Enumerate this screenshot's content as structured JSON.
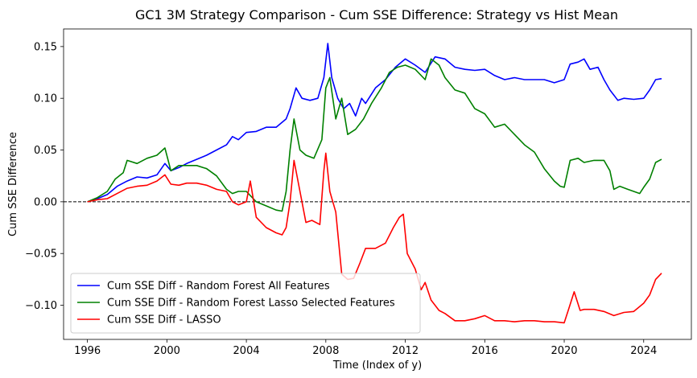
{
  "chart_data": {
    "type": "line",
    "title": "GC1 3M Strategy Comparison - Cum SSE Difference: Strategy vs Hist Mean",
    "xlabel": "Time (Index of y)",
    "ylabel": "Cum SSE Difference",
    "xlim": [
      1994.8,
      2026.4
    ],
    "ylim": [
      -0.133,
      0.167
    ],
    "xticks": [
      1996,
      2000,
      2004,
      2008,
      2012,
      2016,
      2020,
      2024
    ],
    "xtick_labels": [
      "1996",
      "2000",
      "2004",
      "2008",
      "2012",
      "2016",
      "2020",
      "2024"
    ],
    "yticks": [
      -0.1,
      -0.05,
      0.0,
      0.05,
      0.1,
      0.15
    ],
    "ytick_labels": [
      "−0.10",
      "−0.05",
      "0.00",
      "0.05",
      "0.10",
      "0.15"
    ],
    "reference_line": {
      "y": 0.0,
      "style": "dashed",
      "color": "#000000"
    },
    "legend_position": "lower-left",
    "series": [
      {
        "name": "Cum SSE Diff - Random Forest All Features",
        "color": "#0000ff",
        "points": [
          [
            1996.0,
            0.0
          ],
          [
            1996.5,
            0.003
          ],
          [
            1997.0,
            0.007
          ],
          [
            1997.5,
            0.015
          ],
          [
            1998.0,
            0.02
          ],
          [
            1998.5,
            0.024
          ],
          [
            1999.0,
            0.023
          ],
          [
            1999.5,
            0.026
          ],
          [
            1999.9,
            0.037
          ],
          [
            2000.2,
            0.03
          ],
          [
            2000.6,
            0.033
          ],
          [
            2001.0,
            0.037
          ],
          [
            2001.5,
            0.041
          ],
          [
            2002.0,
            0.045
          ],
          [
            2002.5,
            0.05
          ],
          [
            2003.0,
            0.055
          ],
          [
            2003.3,
            0.063
          ],
          [
            2003.6,
            0.06
          ],
          [
            2004.0,
            0.067
          ],
          [
            2004.5,
            0.068
          ],
          [
            2005.0,
            0.072
          ],
          [
            2005.5,
            0.072
          ],
          [
            2006.0,
            0.08
          ],
          [
            2006.2,
            0.09
          ],
          [
            2006.5,
            0.11
          ],
          [
            2006.8,
            0.1
          ],
          [
            2007.2,
            0.098
          ],
          [
            2007.6,
            0.1
          ],
          [
            2007.9,
            0.12
          ],
          [
            2008.1,
            0.153
          ],
          [
            2008.3,
            0.12
          ],
          [
            2008.6,
            0.1
          ],
          [
            2008.9,
            0.09
          ],
          [
            2009.2,
            0.095
          ],
          [
            2009.5,
            0.083
          ],
          [
            2009.8,
            0.1
          ],
          [
            2010.0,
            0.095
          ],
          [
            2010.5,
            0.11
          ],
          [
            2011.0,
            0.118
          ],
          [
            2011.5,
            0.13
          ],
          [
            2012.0,
            0.138
          ],
          [
            2012.5,
            0.132
          ],
          [
            2013.0,
            0.125
          ],
          [
            2013.5,
            0.14
          ],
          [
            2014.0,
            0.138
          ],
          [
            2014.5,
            0.13
          ],
          [
            2015.0,
            0.128
          ],
          [
            2015.5,
            0.127
          ],
          [
            2016.0,
            0.128
          ],
          [
            2016.5,
            0.122
          ],
          [
            2017.0,
            0.118
          ],
          [
            2017.5,
            0.12
          ],
          [
            2018.0,
            0.118
          ],
          [
            2018.5,
            0.118
          ],
          [
            2019.0,
            0.118
          ],
          [
            2019.5,
            0.115
          ],
          [
            2020.0,
            0.118
          ],
          [
            2020.3,
            0.133
          ],
          [
            2020.7,
            0.135
          ],
          [
            2021.0,
            0.138
          ],
          [
            2021.3,
            0.128
          ],
          [
            2021.7,
            0.13
          ],
          [
            2022.0,
            0.118
          ],
          [
            2022.3,
            0.108
          ],
          [
            2022.7,
            0.098
          ],
          [
            2023.0,
            0.1
          ],
          [
            2023.5,
            0.099
          ],
          [
            2024.0,
            0.1
          ],
          [
            2024.3,
            0.108
          ],
          [
            2024.6,
            0.118
          ],
          [
            2024.9,
            0.119
          ]
        ]
      },
      {
        "name": "Cum SSE Diff - Random Forest Lasso Selected Features",
        "color": "#008000",
        "points": [
          [
            1996.0,
            0.0
          ],
          [
            1996.5,
            0.004
          ],
          [
            1997.0,
            0.01
          ],
          [
            1997.4,
            0.022
          ],
          [
            1997.8,
            0.028
          ],
          [
            1998.0,
            0.04
          ],
          [
            1998.5,
            0.037
          ],
          [
            1999.0,
            0.042
          ],
          [
            1999.5,
            0.045
          ],
          [
            1999.9,
            0.052
          ],
          [
            2000.2,
            0.03
          ],
          [
            2000.6,
            0.035
          ],
          [
            2001.0,
            0.035
          ],
          [
            2001.5,
            0.035
          ],
          [
            2002.0,
            0.032
          ],
          [
            2002.5,
            0.025
          ],
          [
            2003.0,
            0.012
          ],
          [
            2003.3,
            0.008
          ],
          [
            2003.6,
            0.01
          ],
          [
            2004.0,
            0.01
          ],
          [
            2004.5,
            0.0
          ],
          [
            2005.0,
            -0.004
          ],
          [
            2005.5,
            -0.008
          ],
          [
            2005.8,
            -0.009
          ],
          [
            2006.0,
            0.01
          ],
          [
            2006.2,
            0.05
          ],
          [
            2006.4,
            0.08
          ],
          [
            2006.7,
            0.05
          ],
          [
            2007.0,
            0.045
          ],
          [
            2007.4,
            0.042
          ],
          [
            2007.8,
            0.06
          ],
          [
            2008.0,
            0.11
          ],
          [
            2008.2,
            0.12
          ],
          [
            2008.5,
            0.08
          ],
          [
            2008.8,
            0.1
          ],
          [
            2009.1,
            0.065
          ],
          [
            2009.5,
            0.07
          ],
          [
            2009.9,
            0.08
          ],
          [
            2010.3,
            0.095
          ],
          [
            2010.8,
            0.11
          ],
          [
            2011.2,
            0.125
          ],
          [
            2011.6,
            0.13
          ],
          [
            2012.0,
            0.132
          ],
          [
            2012.5,
            0.128
          ],
          [
            2013.0,
            0.118
          ],
          [
            2013.3,
            0.138
          ],
          [
            2013.7,
            0.132
          ],
          [
            2014.0,
            0.12
          ],
          [
            2014.5,
            0.108
          ],
          [
            2015.0,
            0.105
          ],
          [
            2015.5,
            0.09
          ],
          [
            2016.0,
            0.085
          ],
          [
            2016.5,
            0.072
          ],
          [
            2017.0,
            0.075
          ],
          [
            2017.5,
            0.065
          ],
          [
            2018.0,
            0.055
          ],
          [
            2018.5,
            0.048
          ],
          [
            2019.0,
            0.032
          ],
          [
            2019.5,
            0.02
          ],
          [
            2019.8,
            0.015
          ],
          [
            2020.0,
            0.014
          ],
          [
            2020.3,
            0.04
          ],
          [
            2020.7,
            0.042
          ],
          [
            2021.0,
            0.038
          ],
          [
            2021.5,
            0.04
          ],
          [
            2022.0,
            0.04
          ],
          [
            2022.3,
            0.03
          ],
          [
            2022.5,
            0.012
          ],
          [
            2022.8,
            0.015
          ],
          [
            2023.2,
            0.012
          ],
          [
            2023.5,
            0.01
          ],
          [
            2023.8,
            0.008
          ],
          [
            2024.0,
            0.014
          ],
          [
            2024.3,
            0.022
          ],
          [
            2024.6,
            0.038
          ],
          [
            2024.9,
            0.041
          ]
        ]
      },
      {
        "name": "Cum SSE Diff - LASSO",
        "color": "#ff0000",
        "points": [
          [
            1996.0,
            0.0
          ],
          [
            1996.5,
            0.002
          ],
          [
            1997.0,
            0.003
          ],
          [
            1997.5,
            0.008
          ],
          [
            1998.0,
            0.013
          ],
          [
            1998.5,
            0.015
          ],
          [
            1999.0,
            0.016
          ],
          [
            1999.5,
            0.02
          ],
          [
            1999.9,
            0.026
          ],
          [
            2000.2,
            0.017
          ],
          [
            2000.6,
            0.016
          ],
          [
            2001.0,
            0.018
          ],
          [
            2001.5,
            0.018
          ],
          [
            2002.0,
            0.016
          ],
          [
            2002.5,
            0.012
          ],
          [
            2003.0,
            0.01
          ],
          [
            2003.3,
            0.0
          ],
          [
            2003.6,
            -0.003
          ],
          [
            2004.0,
            0.0
          ],
          [
            2004.2,
            0.02
          ],
          [
            2004.5,
            -0.015
          ],
          [
            2005.0,
            -0.025
          ],
          [
            2005.5,
            -0.03
          ],
          [
            2005.8,
            -0.032
          ],
          [
            2006.0,
            -0.025
          ],
          [
            2006.2,
            0.0
          ],
          [
            2006.4,
            0.04
          ],
          [
            2006.7,
            0.01
          ],
          [
            2007.0,
            -0.02
          ],
          [
            2007.3,
            -0.018
          ],
          [
            2007.7,
            -0.022
          ],
          [
            2007.9,
            0.03
          ],
          [
            2008.0,
            0.047
          ],
          [
            2008.2,
            0.01
          ],
          [
            2008.5,
            -0.01
          ],
          [
            2008.8,
            -0.07
          ],
          [
            2009.1,
            -0.075
          ],
          [
            2009.4,
            -0.074
          ],
          [
            2009.7,
            -0.06
          ],
          [
            2010.0,
            -0.045
          ],
          [
            2010.5,
            -0.045
          ],
          [
            2011.0,
            -0.04
          ],
          [
            2011.4,
            -0.025
          ],
          [
            2011.7,
            -0.015
          ],
          [
            2011.9,
            -0.012
          ],
          [
            2012.1,
            -0.05
          ],
          [
            2012.5,
            -0.065
          ],
          [
            2012.8,
            -0.085
          ],
          [
            2013.0,
            -0.078
          ],
          [
            2013.3,
            -0.095
          ],
          [
            2013.7,
            -0.105
          ],
          [
            2014.0,
            -0.108
          ],
          [
            2014.5,
            -0.115
          ],
          [
            2015.0,
            -0.115
          ],
          [
            2015.5,
            -0.113
          ],
          [
            2016.0,
            -0.11
          ],
          [
            2016.5,
            -0.115
          ],
          [
            2017.0,
            -0.115
          ],
          [
            2017.5,
            -0.116
          ],
          [
            2018.0,
            -0.115
          ],
          [
            2018.5,
            -0.115
          ],
          [
            2019.0,
            -0.116
          ],
          [
            2019.5,
            -0.116
          ],
          [
            2020.0,
            -0.117
          ],
          [
            2020.2,
            -0.105
          ],
          [
            2020.5,
            -0.087
          ],
          [
            2020.8,
            -0.105
          ],
          [
            2021.0,
            -0.104
          ],
          [
            2021.5,
            -0.104
          ],
          [
            2022.0,
            -0.106
          ],
          [
            2022.5,
            -0.11
          ],
          [
            2023.0,
            -0.107
          ],
          [
            2023.5,
            -0.106
          ],
          [
            2024.0,
            -0.098
          ],
          [
            2024.3,
            -0.09
          ],
          [
            2024.6,
            -0.075
          ],
          [
            2024.9,
            -0.069
          ]
        ]
      }
    ]
  }
}
